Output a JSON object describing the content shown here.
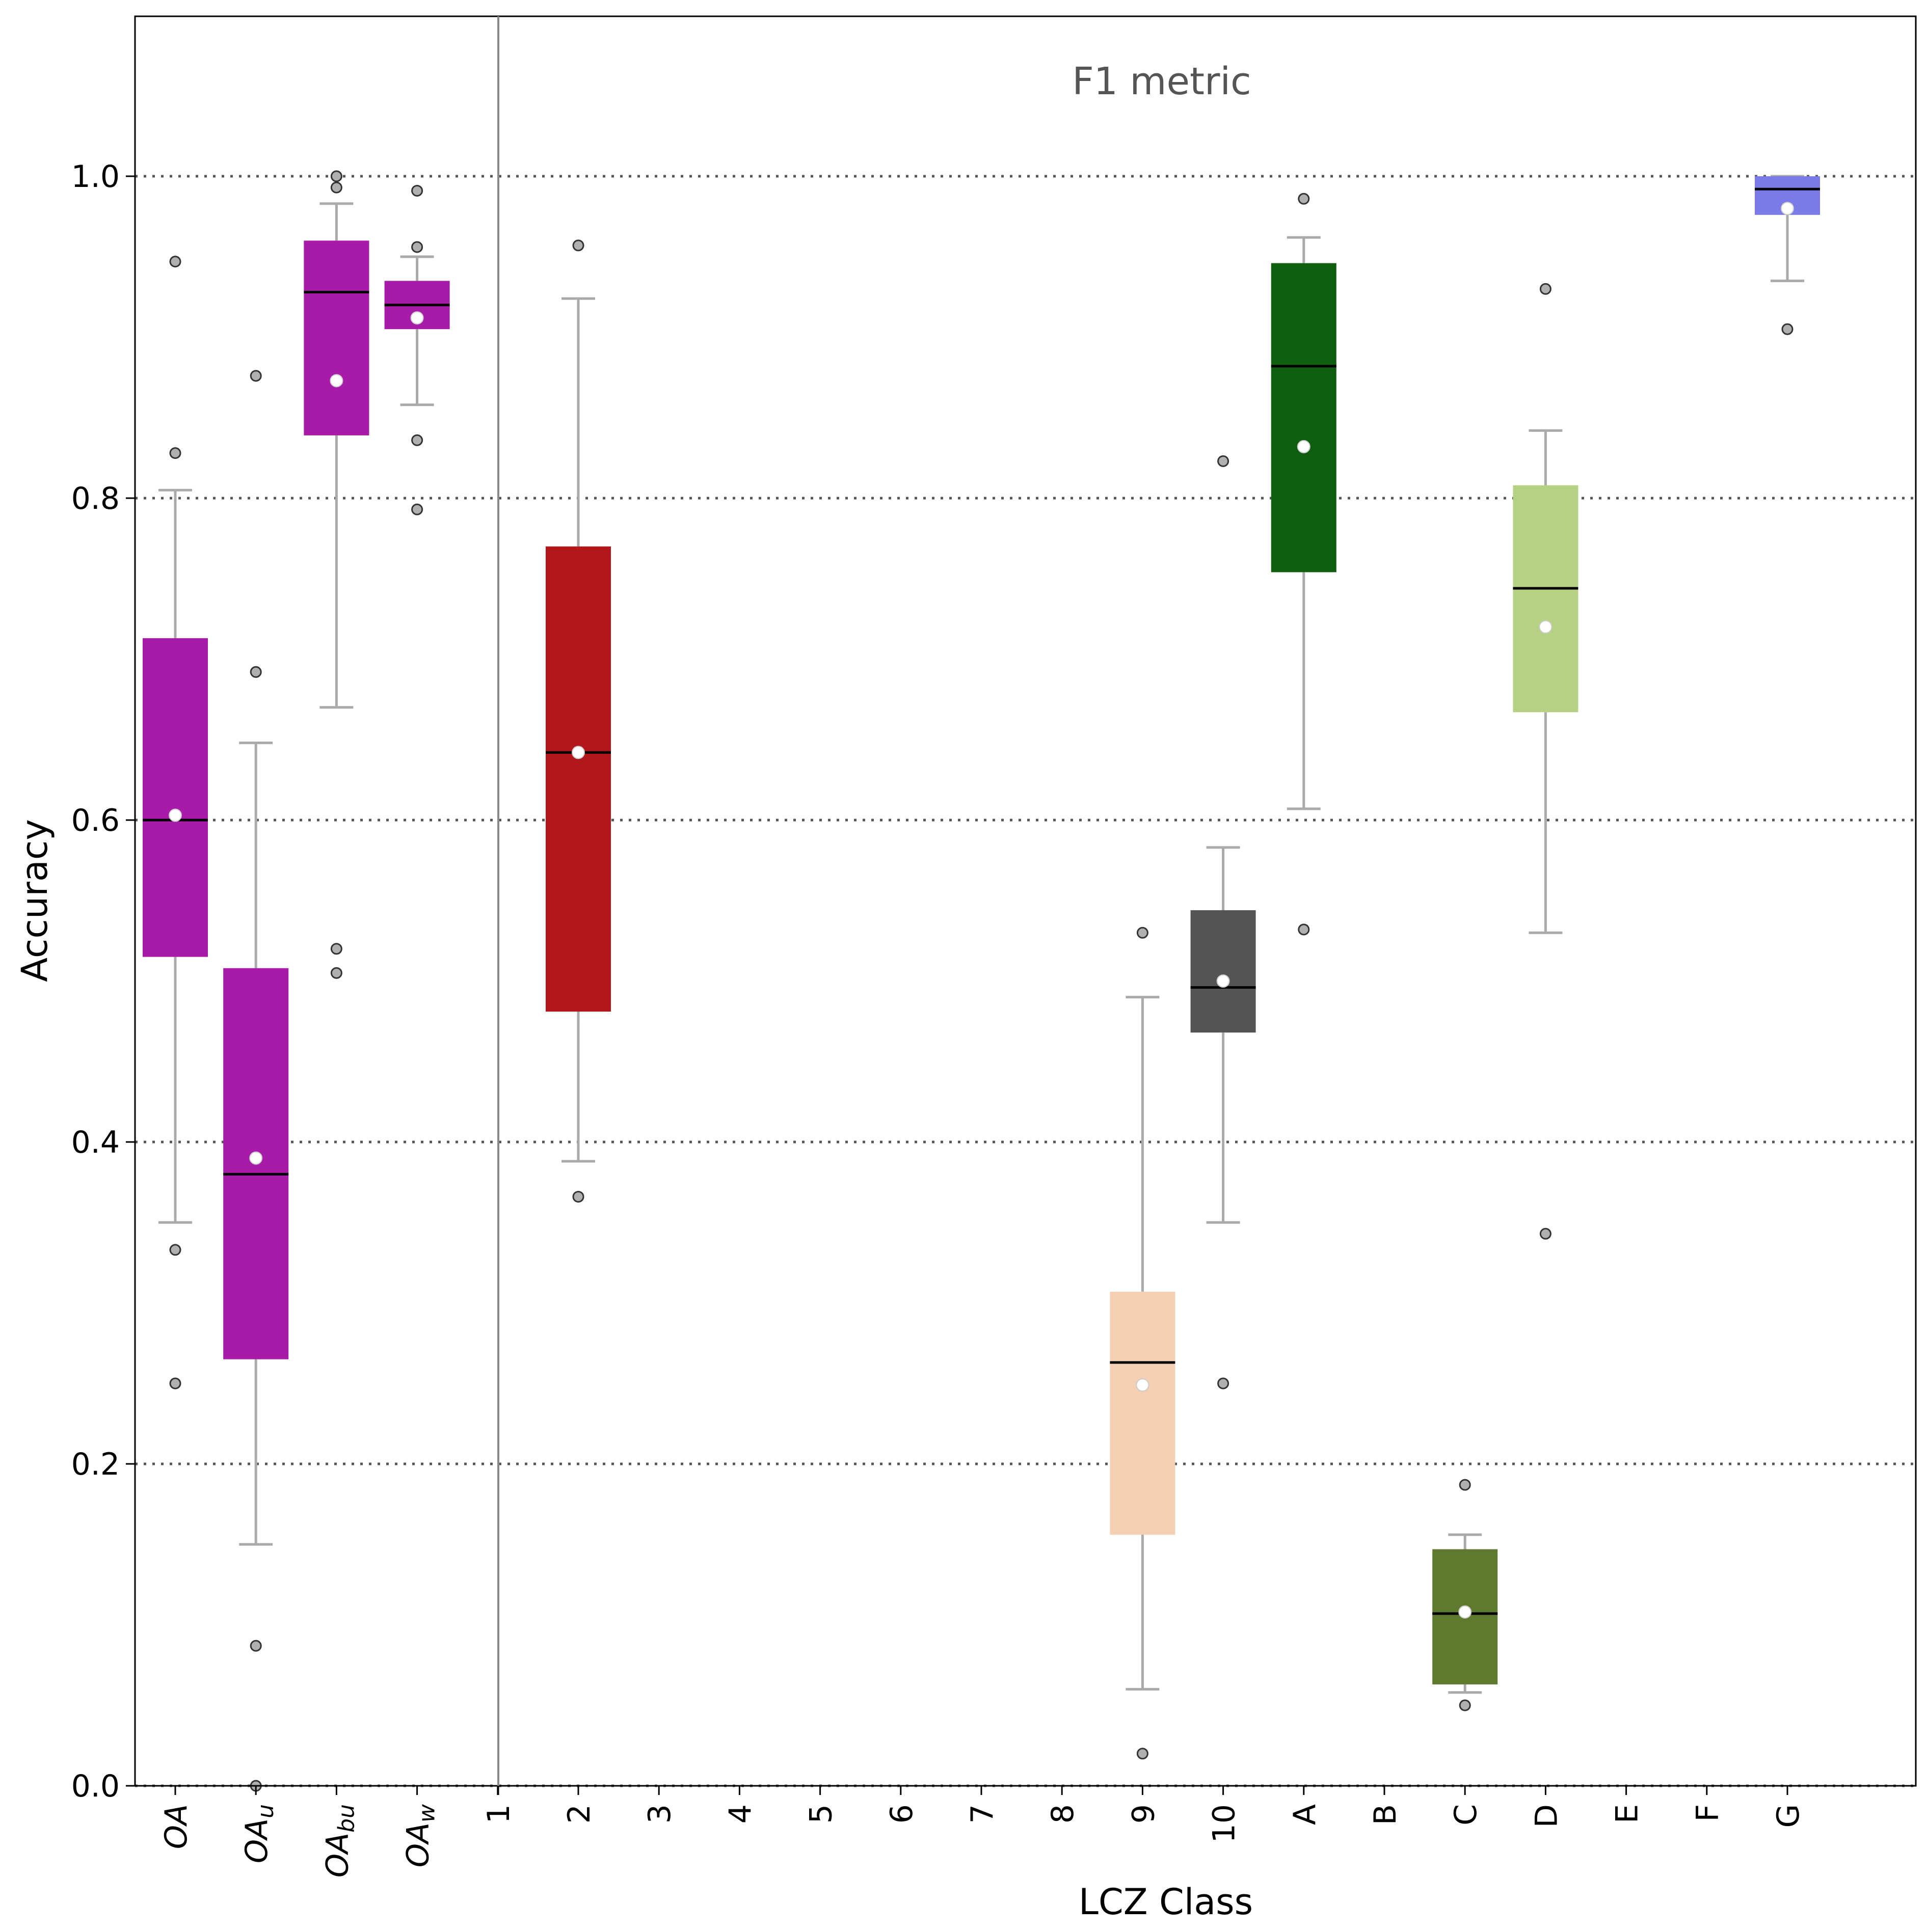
{
  "chart_data": {
    "type": "box",
    "title": "F1 metric",
    "xlabel": "LCZ Class",
    "ylabel": "Accuracy",
    "ylim": [
      0.0,
      1.1
    ],
    "yticks": [
      "0.0",
      "0.2",
      "0.4",
      "0.6",
      "0.8",
      "1.0"
    ],
    "ytick_values": [
      0.0,
      0.2,
      0.4,
      0.6,
      0.8,
      1.0
    ],
    "grid": "horizontal dotted at y ticks",
    "categories": [
      {
        "label": "OA",
        "sub": "",
        "italic": true,
        "color": "#a81aa8",
        "q1": 0.515,
        "median": 0.6,
        "q3": 0.713,
        "whisker_low": 0.35,
        "whisker_high": 0.805,
        "mean": 0.603,
        "outliers": [
          0.947,
          0.828,
          0.333,
          0.25
        ]
      },
      {
        "label": "OA",
        "sub": "u",
        "italic": true,
        "color": "#a81aa8",
        "q1": 0.265,
        "median": 0.38,
        "q3": 0.508,
        "whisker_low": 0.15,
        "whisker_high": 0.648,
        "mean": 0.39,
        "outliers": [
          0.876,
          0.692,
          0.087,
          0.0
        ]
      },
      {
        "label": "OA",
        "sub": "bu",
        "italic": true,
        "color": "#a81aa8",
        "q1": 0.839,
        "median": 0.928,
        "q3": 0.96,
        "whisker_low": 0.67,
        "whisker_high": 0.983,
        "mean": 0.873,
        "outliers": [
          1.0,
          0.993,
          0.52,
          0.505
        ]
      },
      {
        "label": "OA",
        "sub": "w",
        "italic": true,
        "color": "#a81aa8",
        "q1": 0.905,
        "median": 0.92,
        "q3": 0.935,
        "whisker_low": 0.858,
        "whisker_high": 0.95,
        "mean": 0.912,
        "outliers": [
          0.991,
          0.956,
          0.836,
          0.793
        ]
      },
      {
        "label": "1",
        "color": null
      },
      {
        "label": "2",
        "color": "#b2181b",
        "q1": 0.481,
        "median": 0.642,
        "q3": 0.77,
        "whisker_low": 0.388,
        "whisker_high": 0.924,
        "mean": 0.642,
        "outliers": [
          0.957,
          0.366
        ]
      },
      {
        "label": "3",
        "color": null
      },
      {
        "label": "4",
        "color": null
      },
      {
        "label": "5",
        "color": null
      },
      {
        "label": "6",
        "color": null
      },
      {
        "label": "7",
        "color": null
      },
      {
        "label": "8",
        "color": null
      },
      {
        "label": "9",
        "color": "#f5cfb3",
        "q1": 0.156,
        "median": 0.263,
        "q3": 0.307,
        "whisker_low": 0.06,
        "whisker_high": 0.49,
        "mean": 0.249,
        "outliers": [
          0.53,
          0.02
        ]
      },
      {
        "label": "10",
        "color": "#545454",
        "q1": 0.468,
        "median": 0.496,
        "q3": 0.544,
        "whisker_low": 0.35,
        "whisker_high": 0.583,
        "mean": 0.5,
        "outliers": [
          0.823,
          0.25
        ]
      },
      {
        "label": "A",
        "color": "#0f5e0f",
        "q1": 0.754,
        "median": 0.882,
        "q3": 0.946,
        "whisker_low": 0.607,
        "whisker_high": 0.962,
        "mean": 0.832,
        "outliers": [
          0.986,
          0.532
        ]
      },
      {
        "label": "B",
        "color": null
      },
      {
        "label": "C",
        "color": "#5e7a2e",
        "q1": 0.063,
        "median": 0.107,
        "q3": 0.147,
        "whisker_low": 0.058,
        "whisker_high": 0.156,
        "mean": 0.108,
        "outliers": [
          0.187,
          0.05
        ]
      },
      {
        "label": "D",
        "color": "#b5d184",
        "q1": 0.667,
        "median": 0.744,
        "q3": 0.808,
        "whisker_low": 0.53,
        "whisker_high": 0.842,
        "mean": 0.72,
        "outliers": [
          0.93,
          0.343
        ]
      },
      {
        "label": "E",
        "color": null
      },
      {
        "label": "F",
        "color": null
      },
      {
        "label": "G",
        "color": "#7b7be8",
        "q1": 0.976,
        "median": 0.992,
        "q3": 1.0,
        "whisker_low": 0.935,
        "whisker_high": 1.0,
        "mean": 0.98,
        "outliers": [
          0.905
        ]
      }
    ]
  }
}
